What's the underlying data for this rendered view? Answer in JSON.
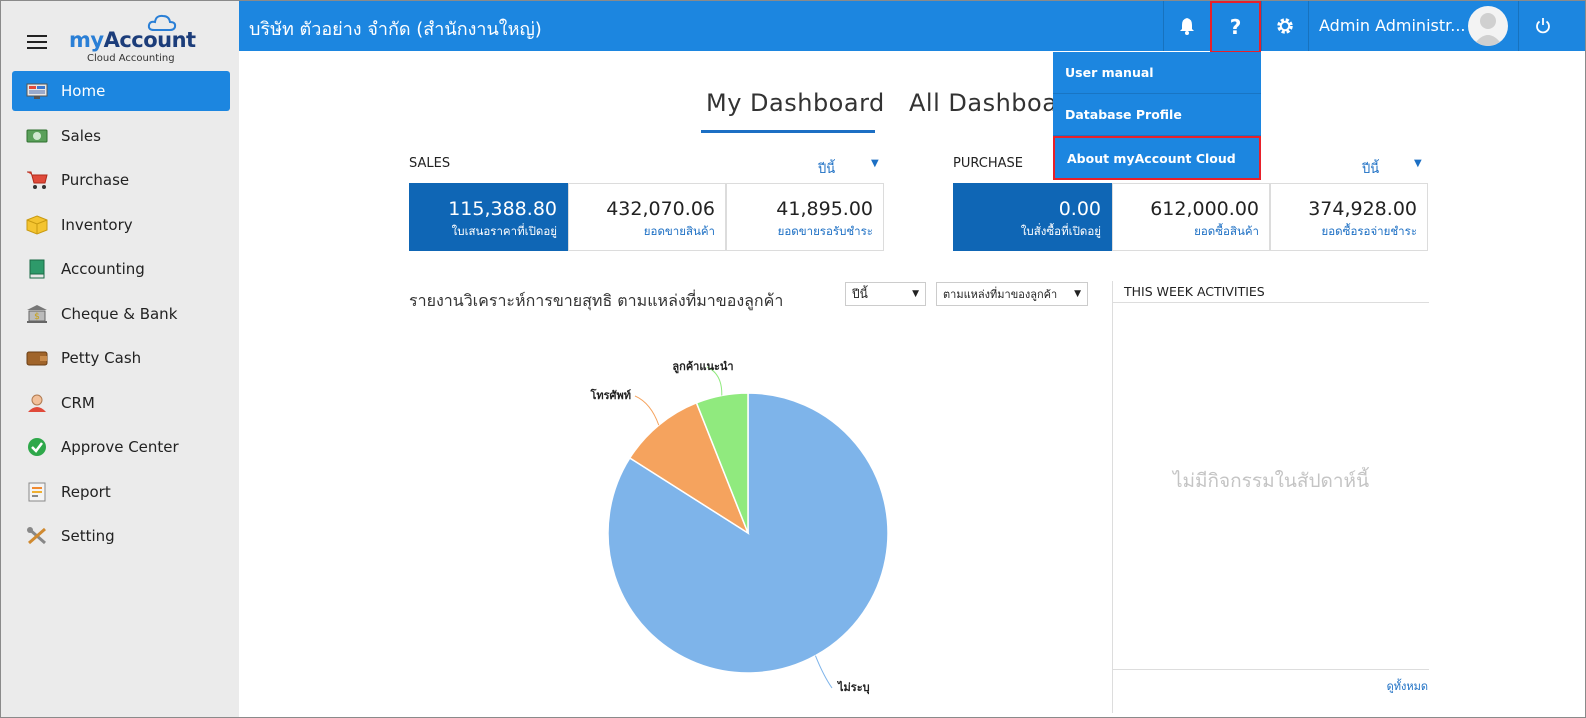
{
  "app": {
    "brand_my": "my",
    "brand_account": "Account",
    "brand_tagline": "Cloud Accounting",
    "company": "บริษัท ตัวอย่าง จำกัด (สำนักงานใหญ่)"
  },
  "sidebar": {
    "items": [
      {
        "label": "Home",
        "icon": "home-icon"
      },
      {
        "label": "Sales",
        "icon": "sales-icon"
      },
      {
        "label": "Purchase",
        "icon": "cart-icon"
      },
      {
        "label": "Inventory",
        "icon": "box-icon"
      },
      {
        "label": "Accounting",
        "icon": "book-icon"
      },
      {
        "label": "Cheque & Bank",
        "icon": "bank-icon"
      },
      {
        "label": "Petty Cash",
        "icon": "wallet-icon"
      },
      {
        "label": "CRM",
        "icon": "crm-icon"
      },
      {
        "label": "Approve Center",
        "icon": "check-icon"
      },
      {
        "label": "Report",
        "icon": "report-icon"
      },
      {
        "label": "Setting",
        "icon": "tools-icon"
      }
    ],
    "active": "Home"
  },
  "topbar": {
    "help_label": "?",
    "user": "Admin Administr..."
  },
  "help_menu": {
    "items": [
      "User manual",
      "Database Profile",
      "About myAccount Cloud"
    ]
  },
  "tabs": {
    "my": "My Dashboard",
    "all": "All Dashboard"
  },
  "sales": {
    "title": "SALES",
    "period": "ปีนี้",
    "kpis": [
      {
        "value": "115,388.80",
        "label": "ใบเสนอราคาที่เปิดอยู่"
      },
      {
        "value": "432,070.06",
        "label": "ยอดขายสินค้า"
      },
      {
        "value": "41,895.00",
        "label": "ยอดขายรอรับชำระ"
      }
    ]
  },
  "purchase": {
    "title": "PURCHASE",
    "period": "ปีนี้",
    "kpis": [
      {
        "value": "0.00",
        "label": "ใบสั่งซื้อที่เปิดอยู่"
      },
      {
        "value": "612,000.00",
        "label": "ยอดซื้อสินค้า"
      },
      {
        "value": "374,928.00",
        "label": "ยอดซื้อรอจ่ายชำระ"
      }
    ]
  },
  "report": {
    "title": "รายงานวิเคราะห์การขายสุทธิ ตามแหล่งที่มาของลูกค้า",
    "period_select": "ปีนี้",
    "group_select": "ตามแหล่งที่มาของลูกค้า"
  },
  "chart_data": {
    "type": "pie",
    "categories": [
      "ไม่ระบุ",
      "โทรศัพท์",
      "ลูกค้าแนะนำ"
    ],
    "values": [
      84,
      10,
      6
    ],
    "colors": [
      "#7eb4ea",
      "#f5a35e",
      "#90ea7e"
    ]
  },
  "activities": {
    "title": "THIS WEEK ACTIVITIES",
    "empty": "ไม่มีกิจกรรมในสัปดาห์นี้",
    "view_all": "ดูทั้งหมด"
  }
}
